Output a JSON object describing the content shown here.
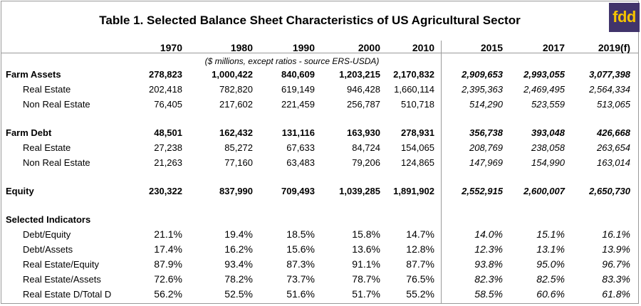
{
  "title": "Table 1. Selected Balance Sheet Characteristics of US Agricultural Sector",
  "logo_text": "fdd",
  "colors": {
    "logo_bg": "#41346b",
    "logo_fg": "#f5c300",
    "rule": "#9a9a9a"
  },
  "columns": [
    "1970",
    "1980",
    "1990",
    "2000",
    "2010",
    "2015",
    "2017",
    "2019(f)"
  ],
  "note": "($ millions, except ratios - source ERS-USDA)",
  "rows": [
    {
      "label": "Farm Assets",
      "bold": true,
      "values": [
        "278,823",
        "1,000,422",
        "840,609",
        "1,203,215",
        "2,170,832",
        "2,909,653",
        "2,993,055",
        "3,077,398"
      ]
    },
    {
      "label": "Real Estate",
      "bold": false,
      "values": [
        "202,418",
        "782,820",
        "619,149",
        "946,428",
        "1,660,114",
        "2,395,363",
        "2,469,495",
        "2,564,334"
      ]
    },
    {
      "label": "Non Real Estate",
      "bold": false,
      "values": [
        "76,405",
        "217,602",
        "221,459",
        "256,787",
        "510,718",
        "514,290",
        "523,559",
        "513,065"
      ]
    },
    {
      "label": "Farm Debt",
      "bold": true,
      "values": [
        "48,501",
        "162,432",
        "131,116",
        "163,930",
        "278,931",
        "356,738",
        "393,048",
        "426,668"
      ]
    },
    {
      "label": "Real Estate",
      "bold": false,
      "values": [
        "27,238",
        "85,272",
        "67,633",
        "84,724",
        "154,065",
        "208,769",
        "238,058",
        "263,654"
      ]
    },
    {
      "label": "Non Real Estate",
      "bold": false,
      "values": [
        "21,263",
        "77,160",
        "63,483",
        "79,206",
        "124,865",
        "147,969",
        "154,990",
        "163,014"
      ]
    },
    {
      "label": "Equity",
      "bold": true,
      "values": [
        "230,322",
        "837,990",
        "709,493",
        "1,039,285",
        "1,891,902",
        "2,552,915",
        "2,600,007",
        "2,650,730"
      ]
    },
    {
      "label": "Selected Indicators",
      "bold": true,
      "values": []
    },
    {
      "label": "Debt/Equity",
      "bold": false,
      "pct": true,
      "values": [
        "21.1%",
        "19.4%",
        "18.5%",
        "15.8%",
        "14.7%",
        "14.0%",
        "15.1%",
        "16.1%"
      ]
    },
    {
      "label": "Debt/Assets",
      "bold": false,
      "pct": true,
      "values": [
        "17.4%",
        "16.2%",
        "15.6%",
        "13.6%",
        "12.8%",
        "12.3%",
        "13.1%",
        "13.9%"
      ]
    },
    {
      "label": "Real Estate/Equity",
      "bold": false,
      "pct": true,
      "values": [
        "87.9%",
        "93.4%",
        "87.3%",
        "91.1%",
        "87.7%",
        "93.8%",
        "95.0%",
        "96.7%"
      ]
    },
    {
      "label": "Real Estate/Assets",
      "bold": false,
      "pct": true,
      "values": [
        "72.6%",
        "78.2%",
        "73.7%",
        "78.7%",
        "76.5%",
        "82.3%",
        "82.5%",
        "83.3%"
      ]
    },
    {
      "label": "Real Estate D/Total D",
      "bold": false,
      "pct": true,
      "values": [
        "56.2%",
        "52.5%",
        "51.6%",
        "51.7%",
        "55.2%",
        "58.5%",
        "60.6%",
        "61.8%"
      ]
    }
  ]
}
